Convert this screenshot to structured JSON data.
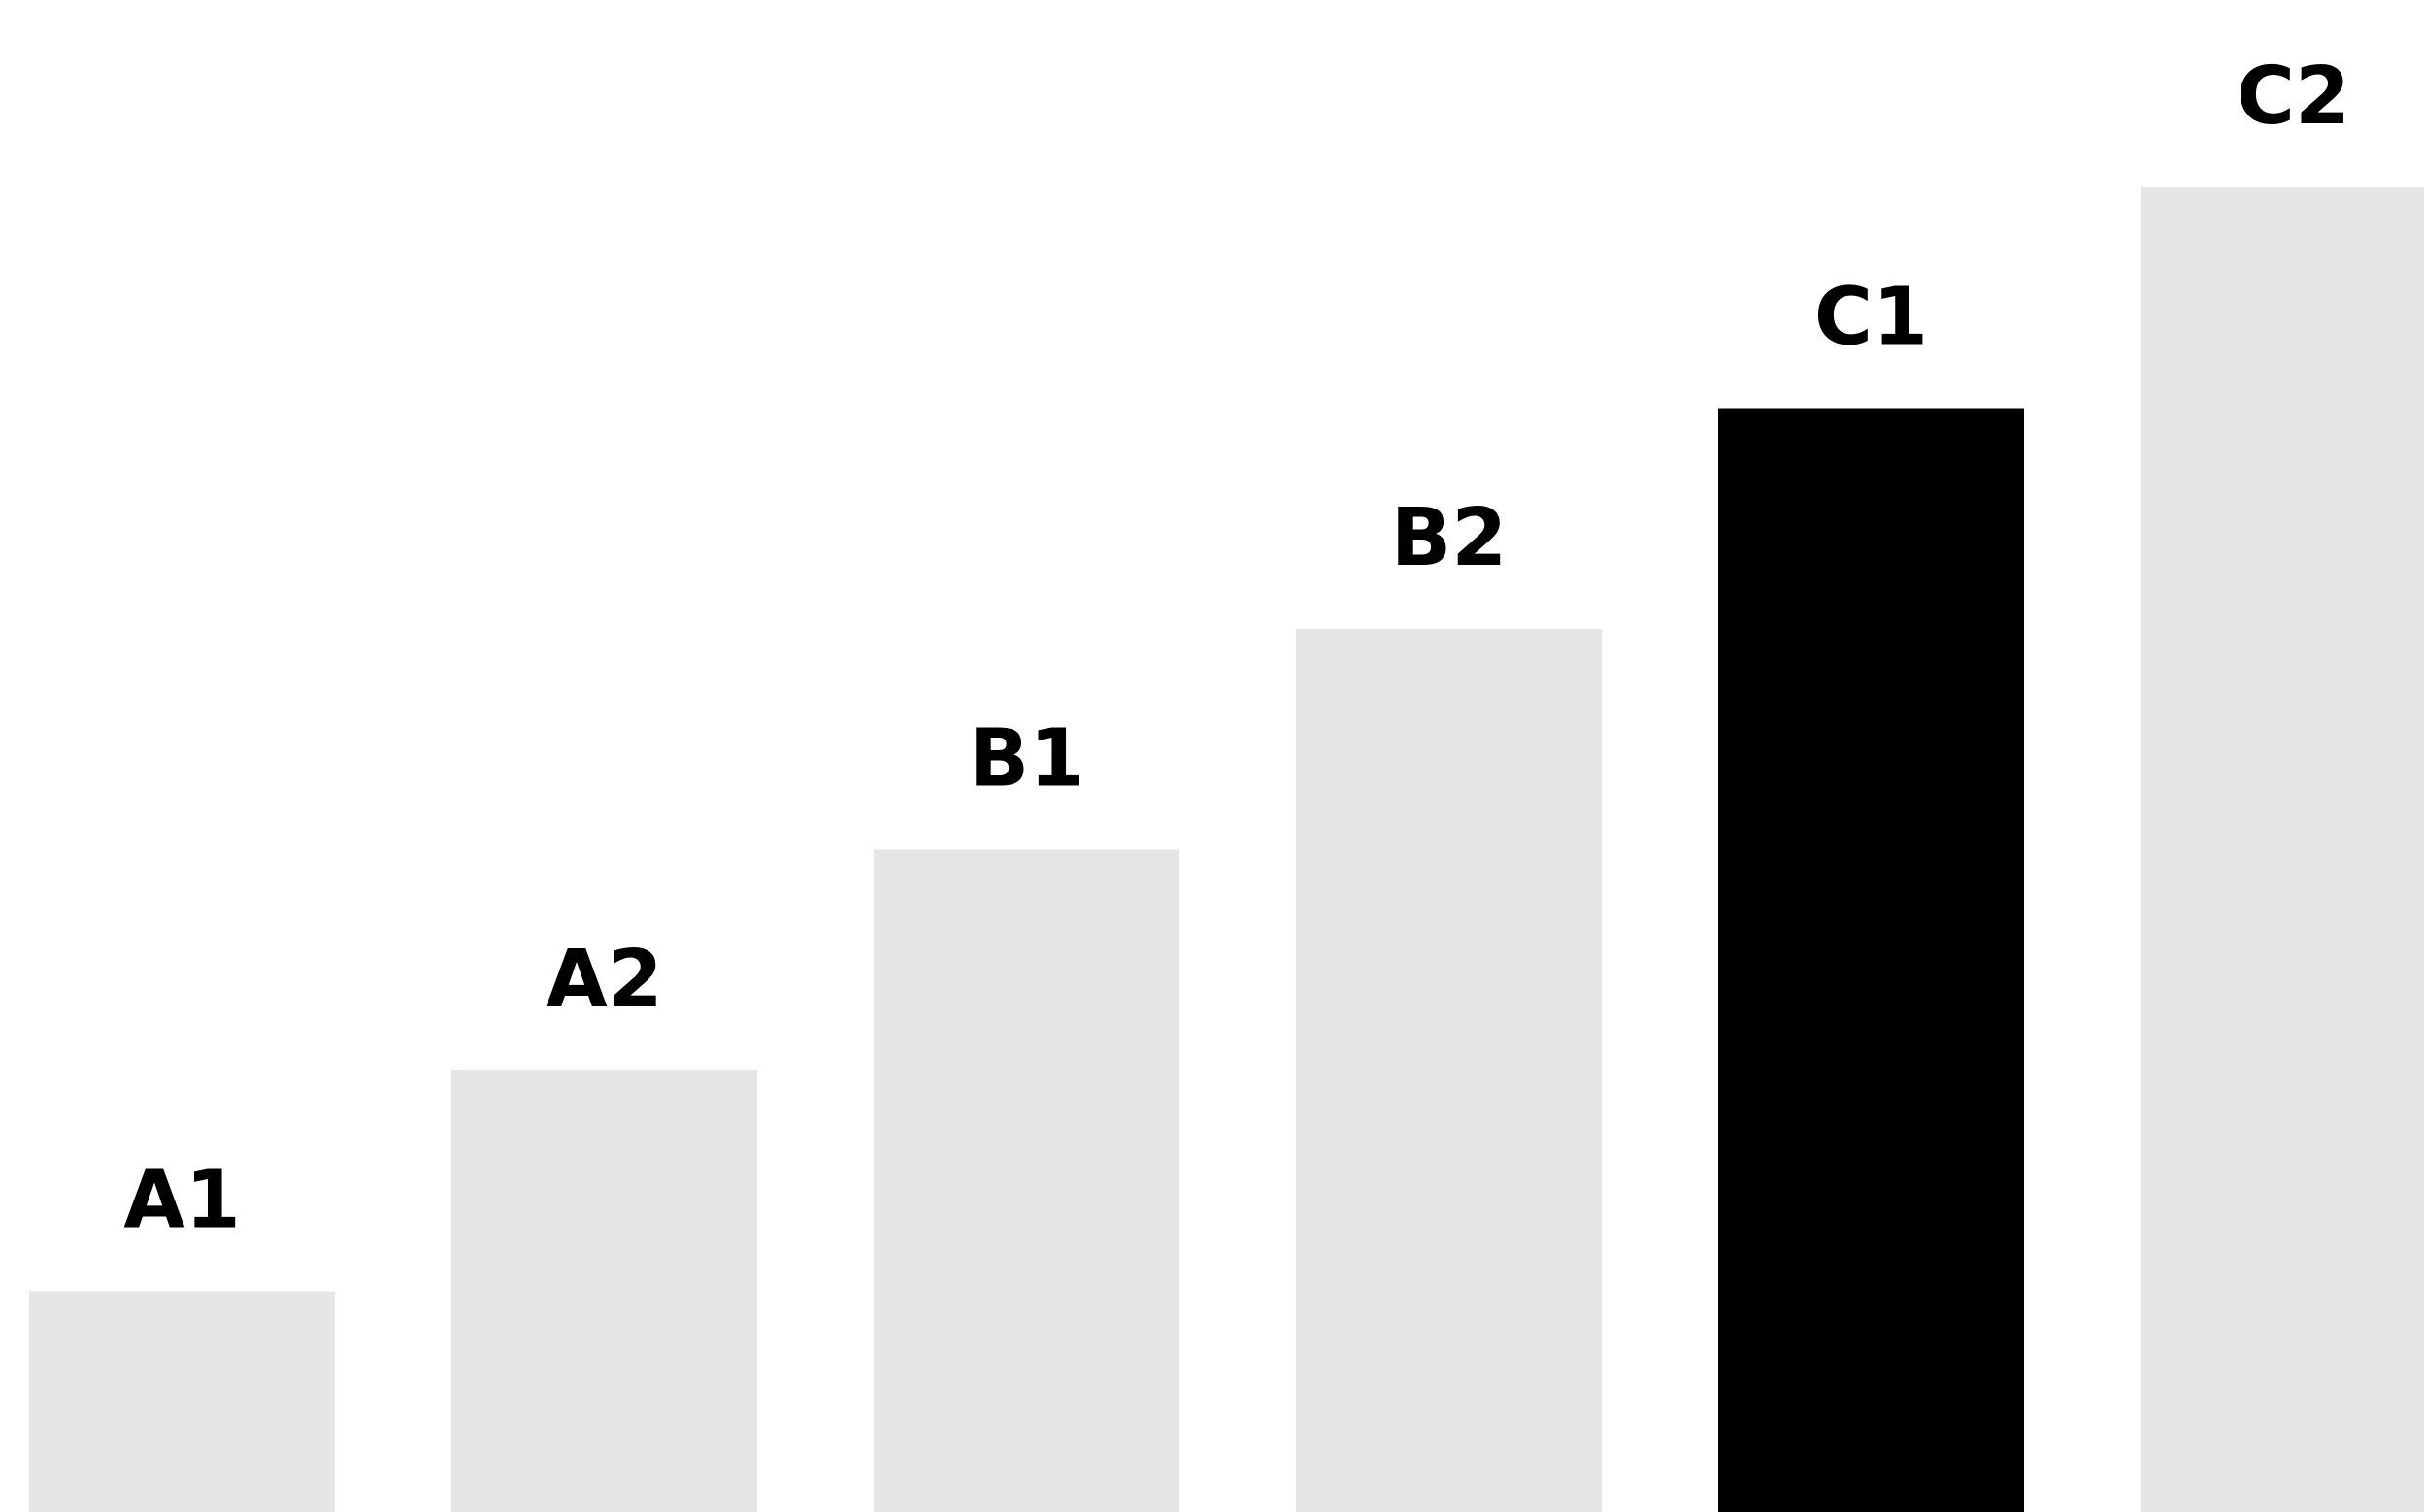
{
  "chart_data": {
    "type": "bar",
    "title": "",
    "xlabel": "",
    "ylabel": "",
    "categories": [
      "A1",
      "A2",
      "B1",
      "B2",
      "C1",
      "C2"
    ],
    "values": [
      1,
      2,
      3,
      4,
      5,
      6
    ],
    "ylim": [
      0,
      6
    ],
    "grid": false,
    "legend": "none",
    "highlight_index": 4,
    "colors": {
      "bar": "#e6e6e6",
      "highlight": "#000000",
      "label": "#000000",
      "background": "#ffffff"
    }
  }
}
